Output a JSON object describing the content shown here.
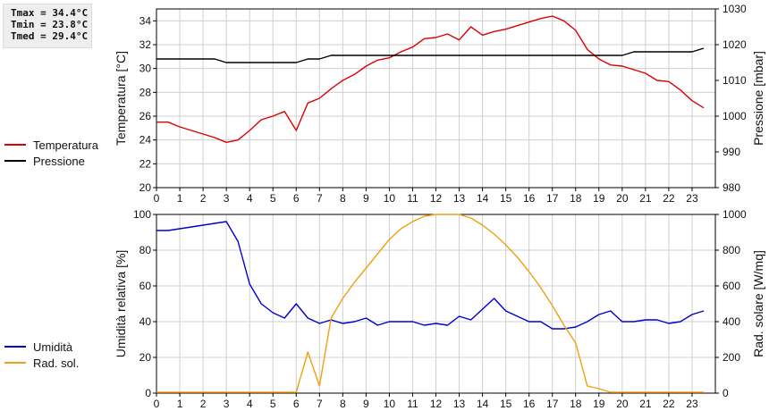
{
  "stats": {
    "tmax": "Tmax = 34.4°C",
    "tmin": "Tmin = 23.8°C",
    "tmed": "Tmed = 29.4°C"
  },
  "legend_top": [
    {
      "label": "Temperatura",
      "color": "#dd0000"
    },
    {
      "label": "Pressione",
      "color": "#000000"
    }
  ],
  "legend_bottom": [
    {
      "label": "Umidità",
      "color": "#0000cc"
    },
    {
      "label": "Rad. sol.",
      "color": "#f0a010"
    }
  ],
  "chart_data": [
    {
      "type": "line",
      "ylabel": "Temperatura [°C]",
      "y2label": "Pressione [mbar]",
      "xlim": [
        0,
        24
      ],
      "xticks": [
        0,
        1,
        2,
        3,
        4,
        5,
        6,
        7,
        8,
        9,
        10,
        11,
        12,
        13,
        14,
        15,
        16,
        17,
        18,
        19,
        20,
        21,
        22,
        23
      ],
      "ylim": [
        20,
        35
      ],
      "yticks": [
        20,
        22,
        24,
        26,
        28,
        30,
        32,
        34
      ],
      "y2lim": [
        980,
        1030
      ],
      "y2ticks": [
        980,
        990,
        1000,
        1010,
        1020,
        1030
      ],
      "grid": true,
      "series": [
        {
          "name": "Temperatura",
          "color": "#dd0000",
          "axis": "left",
          "x": [
            0,
            0.5,
            1,
            1.5,
            2,
            2.5,
            3,
            3.5,
            4,
            4.5,
            5,
            5.5,
            6,
            6.5,
            7,
            7.5,
            8,
            8.5,
            9,
            9.5,
            10,
            10.5,
            11,
            11.5,
            12,
            12.5,
            13,
            13.5,
            14,
            14.5,
            15,
            15.5,
            16,
            16.5,
            17,
            17.5,
            18,
            18.5,
            19,
            19.5,
            20,
            20.5,
            21,
            21.5,
            22,
            22.5,
            23,
            23.5
          ],
          "y": [
            25.5,
            25.5,
            25.1,
            24.8,
            24.5,
            24.2,
            23.8,
            24.0,
            24.8,
            25.7,
            26.0,
            26.4,
            24.8,
            27.1,
            27.5,
            28.3,
            29.0,
            29.5,
            30.2,
            30.7,
            30.9,
            31.4,
            31.8,
            32.5,
            32.6,
            32.9,
            32.4,
            33.5,
            32.8,
            33.1,
            33.3,
            33.6,
            33.9,
            34.2,
            34.4,
            34.0,
            33.2,
            31.6,
            30.8,
            30.3,
            30.2,
            29.9,
            29.6,
            29.0,
            28.9,
            28.2,
            27.3,
            26.7
          ]
        },
        {
          "name": "Pressione",
          "color": "#000000",
          "axis": "right",
          "x": [
            0,
            0.5,
            1,
            1.5,
            2,
            2.5,
            3,
            3.5,
            4,
            4.5,
            5,
            5.5,
            6,
            6.5,
            7,
            7.5,
            8,
            8.5,
            9,
            9.5,
            10,
            10.5,
            11,
            11.5,
            12,
            12.5,
            13,
            13.5,
            14,
            14.5,
            15,
            15.5,
            16,
            16.5,
            17,
            17.5,
            18,
            18.5,
            19,
            19.5,
            20,
            20.5,
            21,
            21.5,
            22,
            22.5,
            23,
            23.5
          ],
          "y": [
            1016,
            1016,
            1016,
            1016,
            1016,
            1016,
            1015,
            1015,
            1015,
            1015,
            1015,
            1015,
            1015,
            1016,
            1016,
            1017,
            1017,
            1017,
            1017,
            1017,
            1017,
            1017,
            1017,
            1017,
            1017,
            1017,
            1017,
            1017,
            1017,
            1017,
            1017,
            1017,
            1017,
            1017,
            1017,
            1017,
            1017,
            1017,
            1017,
            1017,
            1017,
            1018,
            1018,
            1018,
            1018,
            1018,
            1018,
            1019
          ]
        }
      ]
    },
    {
      "type": "line",
      "ylabel": "Umidità relativa [%]",
      "y2label": "Rad. solare [W/mq]",
      "xlim": [
        0,
        24
      ],
      "xticks": [
        0,
        1,
        2,
        3,
        4,
        5,
        6,
        7,
        8,
        9,
        10,
        11,
        12,
        13,
        14,
        15,
        16,
        17,
        18,
        19,
        20,
        21,
        22,
        23
      ],
      "ylim": [
        0,
        100
      ],
      "yticks": [
        0,
        20,
        40,
        60,
        80,
        100
      ],
      "y2lim": [
        0,
        1000
      ],
      "y2ticks": [
        0,
        200,
        400,
        600,
        800,
        1000
      ],
      "grid": true,
      "series": [
        {
          "name": "Umidità",
          "color": "#0000cc",
          "axis": "left",
          "x": [
            0,
            0.5,
            1,
            1.5,
            2,
            2.5,
            3,
            3.5,
            4,
            4.5,
            5,
            5.5,
            6,
            6.5,
            7,
            7.5,
            8,
            8.5,
            9,
            9.5,
            10,
            10.5,
            11,
            11.5,
            12,
            12.5,
            13,
            13.5,
            14,
            14.5,
            15,
            15.5,
            16,
            16.5,
            17,
            17.5,
            18,
            18.5,
            19,
            19.5,
            20,
            20.5,
            21,
            21.5,
            22,
            22.5,
            23,
            23.5
          ],
          "y": [
            91,
            91,
            92,
            93,
            94,
            95,
            96,
            85,
            61,
            50,
            45,
            42,
            50,
            42,
            39,
            41,
            39,
            40,
            42,
            38,
            40,
            40,
            40,
            38,
            39,
            38,
            43,
            41,
            47,
            53,
            46,
            43,
            40,
            40,
            36,
            36,
            37,
            40,
            44,
            46,
            40,
            40,
            41,
            41,
            39,
            40,
            44,
            46
          ]
        },
        {
          "name": "Rad. sol.",
          "color": "#f0a010",
          "axis": "right",
          "x": [
            0,
            0.5,
            1,
            1.5,
            2,
            2.5,
            3,
            3.5,
            4,
            4.5,
            5,
            5.5,
            6,
            6.5,
            7,
            7.5,
            8,
            8.5,
            9,
            9.5,
            10,
            10.5,
            11,
            11.5,
            12,
            12.5,
            13,
            13.5,
            14,
            14.5,
            15,
            15.5,
            16,
            16.5,
            17,
            17.5,
            18,
            18.5,
            19,
            19.5,
            20,
            20.5,
            21,
            21.5,
            22,
            22.5,
            23,
            23.5
          ],
          "y": [
            5,
            5,
            5,
            5,
            5,
            5,
            5,
            5,
            5,
            5,
            5,
            5,
            5,
            230,
            40,
            420,
            530,
            620,
            700,
            780,
            860,
            920,
            960,
            990,
            1000,
            1000,
            1000,
            980,
            940,
            890,
            830,
            760,
            680,
            590,
            490,
            380,
            280,
            40,
            25,
            5,
            5,
            5,
            5,
            5,
            5,
            5,
            5,
            5
          ]
        }
      ]
    }
  ]
}
